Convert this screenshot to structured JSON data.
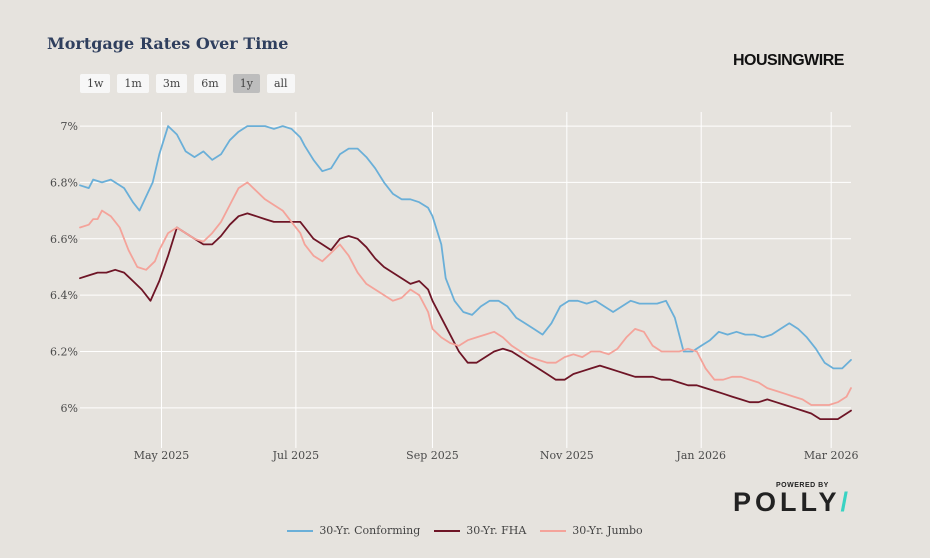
{
  "title": "Mortgage Rates Over Time",
  "brand": "HOUSINGWIRE",
  "range_buttons": [
    "1w",
    "1m",
    "3m",
    "6m",
    "1y",
    "all"
  ],
  "active_range": "1y",
  "powered_by": "POWERED BY",
  "polly_logo": "POLLY",
  "chart_data": {
    "type": "line",
    "title": "Mortgage Rates Over Time",
    "xlabel": "",
    "ylabel": "",
    "ylim": [
      5.9,
      7.05
    ],
    "x_range_days": [
      0,
      350
    ],
    "x_ticks": [
      {
        "label": "May 2025",
        "day": 37
      },
      {
        "label": "Jul 2025",
        "day": 98
      },
      {
        "label": "Sep 2025",
        "day": 160
      },
      {
        "label": "Nov 2025",
        "day": 221
      },
      {
        "label": "Jan 2026",
        "day": 282
      },
      {
        "label": "Mar 2026",
        "day": 341
      }
    ],
    "y_ticks": [
      {
        "label": "6%",
        "value": 6.0
      },
      {
        "label": "6.2%",
        "value": 6.2
      },
      {
        "label": "6.4%",
        "value": 6.4
      },
      {
        "label": "6.6%",
        "value": 6.6
      },
      {
        "label": "6.8%",
        "value": 6.8
      },
      {
        "label": "7%",
        "value": 7.0
      }
    ],
    "grid": true,
    "legend_position": "bottom-center",
    "series": [
      {
        "name": "30-Yr. Conforming",
        "color": "#6aafd8",
        "x": [
          0,
          4,
          6,
          10,
          14,
          20,
          24,
          27,
          33,
          36,
          40,
          44,
          48,
          52,
          56,
          60,
          64,
          68,
          72,
          76,
          80,
          84,
          88,
          92,
          96,
          100,
          102,
          106,
          110,
          114,
          118,
          122,
          126,
          130,
          134,
          138,
          142,
          146,
          150,
          154,
          158,
          160,
          164,
          166,
          170,
          174,
          178,
          182,
          186,
          190,
          194,
          198,
          202,
          206,
          210,
          214,
          218,
          222,
          226,
          230,
          234,
          238,
          242,
          246,
          250,
          254,
          258,
          262,
          266,
          270,
          274,
          278,
          282,
          286,
          290,
          294,
          298,
          302,
          306,
          310,
          314,
          318,
          322,
          326,
          330,
          334,
          338,
          342,
          346,
          350
        ],
        "values": [
          6.79,
          6.78,
          6.81,
          6.8,
          6.81,
          6.78,
          6.73,
          6.7,
          6.8,
          6.9,
          7.0,
          6.97,
          6.91,
          6.89,
          6.91,
          6.88,
          6.9,
          6.95,
          6.98,
          7.0,
          7.0,
          7.0,
          6.99,
          7.0,
          6.99,
          6.96,
          6.93,
          6.88,
          6.84,
          6.85,
          6.9,
          6.92,
          6.92,
          6.89,
          6.85,
          6.8,
          6.76,
          6.74,
          6.74,
          6.73,
          6.71,
          6.68,
          6.58,
          6.46,
          6.38,
          6.34,
          6.33,
          6.36,
          6.38,
          6.38,
          6.36,
          6.32,
          6.3,
          6.28,
          6.26,
          6.3,
          6.36,
          6.38,
          6.38,
          6.37,
          6.38,
          6.36,
          6.34,
          6.36,
          6.38,
          6.37,
          6.37,
          6.37,
          6.38,
          6.32,
          6.2,
          6.2,
          6.22,
          6.24,
          6.27,
          6.26,
          6.27,
          6.26,
          6.26,
          6.25,
          6.26,
          6.28,
          6.3,
          6.28,
          6.25,
          6.21,
          6.16,
          6.14,
          6.14,
          6.17
        ]
      },
      {
        "name": "30-Yr. FHA",
        "color": "#6e1526",
        "x": [
          0,
          4,
          8,
          12,
          16,
          20,
          24,
          28,
          32,
          36,
          40,
          44,
          48,
          52,
          56,
          60,
          64,
          68,
          72,
          76,
          80,
          84,
          88,
          92,
          96,
          100,
          102,
          106,
          110,
          114,
          118,
          122,
          126,
          130,
          134,
          138,
          142,
          146,
          150,
          154,
          158,
          160,
          164,
          168,
          172,
          176,
          180,
          184,
          188,
          192,
          196,
          200,
          204,
          208,
          212,
          216,
          220,
          224,
          228,
          232,
          236,
          240,
          244,
          248,
          252,
          256,
          260,
          264,
          268,
          272,
          276,
          280,
          284,
          288,
          292,
          296,
          300,
          304,
          308,
          312,
          316,
          320,
          324,
          328,
          332,
          336,
          340,
          344,
          348,
          350
        ],
        "values": [
          6.46,
          6.47,
          6.48,
          6.48,
          6.49,
          6.48,
          6.45,
          6.42,
          6.38,
          6.45,
          6.54,
          6.64,
          6.62,
          6.6,
          6.58,
          6.58,
          6.61,
          6.65,
          6.68,
          6.69,
          6.68,
          6.67,
          6.66,
          6.66,
          6.66,
          6.66,
          6.64,
          6.6,
          6.58,
          6.56,
          6.6,
          6.61,
          6.6,
          6.57,
          6.53,
          6.5,
          6.48,
          6.46,
          6.44,
          6.45,
          6.42,
          6.38,
          6.32,
          6.26,
          6.2,
          6.16,
          6.16,
          6.18,
          6.2,
          6.21,
          6.2,
          6.18,
          6.16,
          6.14,
          6.12,
          6.1,
          6.1,
          6.12,
          6.13,
          6.14,
          6.15,
          6.14,
          6.13,
          6.12,
          6.11,
          6.11,
          6.11,
          6.1,
          6.1,
          6.09,
          6.08,
          6.08,
          6.07,
          6.06,
          6.05,
          6.04,
          6.03,
          6.02,
          6.02,
          6.03,
          6.02,
          6.01,
          6.0,
          5.99,
          5.98,
          5.96,
          5.96,
          5.96,
          5.98,
          5.99
        ]
      },
      {
        "name": "30-Yr. Jumbo",
        "color": "#f4a39a",
        "x": [
          0,
          4,
          6,
          8,
          10,
          14,
          18,
          22,
          26,
          30,
          34,
          36,
          40,
          44,
          48,
          52,
          56,
          60,
          64,
          68,
          72,
          76,
          80,
          84,
          88,
          92,
          96,
          100,
          102,
          106,
          110,
          114,
          118,
          122,
          126,
          130,
          134,
          138,
          142,
          146,
          150,
          154,
          158,
          160,
          164,
          168,
          172,
          176,
          180,
          184,
          188,
          192,
          196,
          200,
          204,
          208,
          212,
          216,
          220,
          224,
          228,
          232,
          236,
          240,
          244,
          248,
          252,
          256,
          260,
          264,
          268,
          272,
          276,
          280,
          284,
          288,
          292,
          296,
          300,
          304,
          308,
          312,
          316,
          320,
          324,
          328,
          332,
          336,
          340,
          344,
          348,
          350
        ],
        "values": [
          6.64,
          6.65,
          6.67,
          6.67,
          6.7,
          6.68,
          6.64,
          6.56,
          6.5,
          6.49,
          6.52,
          6.56,
          6.62,
          6.64,
          6.62,
          6.6,
          6.59,
          6.62,
          6.66,
          6.72,
          6.78,
          6.8,
          6.77,
          6.74,
          6.72,
          6.7,
          6.66,
          6.62,
          6.58,
          6.54,
          6.52,
          6.55,
          6.58,
          6.54,
          6.48,
          6.44,
          6.42,
          6.4,
          6.38,
          6.39,
          6.42,
          6.4,
          6.34,
          6.28,
          6.25,
          6.23,
          6.22,
          6.24,
          6.25,
          6.26,
          6.27,
          6.25,
          6.22,
          6.2,
          6.18,
          6.17,
          6.16,
          6.16,
          6.18,
          6.19,
          6.18,
          6.2,
          6.2,
          6.19,
          6.21,
          6.25,
          6.28,
          6.27,
          6.22,
          6.2,
          6.2,
          6.2,
          6.21,
          6.2,
          6.14,
          6.1,
          6.1,
          6.11,
          6.11,
          6.1,
          6.09,
          6.07,
          6.06,
          6.05,
          6.04,
          6.03,
          6.01,
          6.01,
          6.01,
          6.02,
          6.04,
          6.07
        ]
      }
    ]
  }
}
